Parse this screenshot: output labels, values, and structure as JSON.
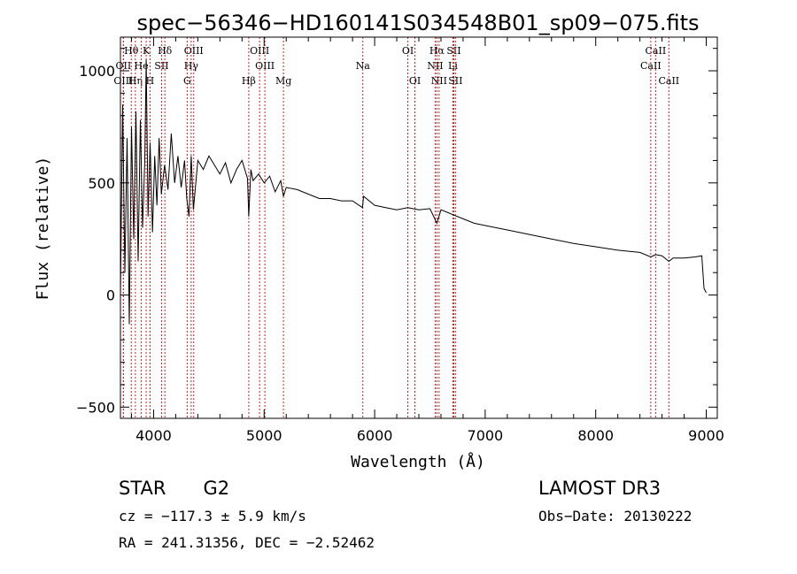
{
  "chart_data": {
    "type": "line",
    "title": "spec−56346−HD160141S034548B01_sp09−075.fits",
    "xlabel": "Wavelength (Å)",
    "ylabel": "Flux (relative)",
    "xlim": [
      3700,
      9100
    ],
    "ylim": [
      -550,
      1150
    ],
    "xticks": [
      4000,
      5000,
      6000,
      7000,
      8000,
      9000
    ],
    "yticks": [
      -500,
      0,
      500,
      1000
    ],
    "series": [
      {
        "name": "spectrum",
        "x": [
          3700,
          3720,
          3740,
          3760,
          3780,
          3800,
          3820,
          3840,
          3860,
          3880,
          3900,
          3920,
          3933,
          3950,
          3968,
          3990,
          4010,
          4030,
          4050,
          4070,
          4100,
          4130,
          4160,
          4190,
          4220,
          4250,
          4280,
          4300,
          4320,
          4340,
          4360,
          4400,
          4450,
          4500,
          4550,
          4600,
          4650,
          4700,
          4750,
          4800,
          4850,
          4861,
          4880,
          4900,
          4950,
          5000,
          5050,
          5100,
          5150,
          5175,
          5200,
          5300,
          5400,
          5500,
          5600,
          5700,
          5800,
          5890,
          5900,
          6000,
          6100,
          6200,
          6300,
          6400,
          6500,
          6563,
          6600,
          6700,
          6800,
          6900,
          7000,
          7200,
          7400,
          7600,
          7800,
          8000,
          8200,
          8400,
          8498,
          8542,
          8600,
          8662,
          8700,
          8800,
          8900,
          8960,
          8980,
          9000
        ],
        "y": [
          0,
          850,
          100,
          700,
          -130,
          750,
          250,
          820,
          150,
          780,
          300,
          600,
          1050,
          350,
          680,
          280,
          620,
          400,
          700,
          450,
          580,
          470,
          720,
          500,
          620,
          480,
          600,
          430,
          350,
          620,
          380,
          600,
          560,
          620,
          580,
          540,
          590,
          500,
          560,
          600,
          520,
          350,
          560,
          510,
          540,
          500,
          530,
          460,
          510,
          440,
          480,
          470,
          450,
          430,
          430,
          420,
          420,
          390,
          440,
          400,
          390,
          380,
          390,
          380,
          385,
          320,
          380,
          360,
          340,
          320,
          310,
          290,
          270,
          250,
          230,
          215,
          200,
          190,
          170,
          180,
          175,
          150,
          165,
          165,
          170,
          175,
          30,
          10
        ]
      }
    ],
    "lines": [
      {
        "name": "Hθ",
        "x": 3798,
        "row": 1
      },
      {
        "name": "OII",
        "x": 3727,
        "row": 2
      },
      {
        "name": "OIII",
        "x": 3727,
        "row": 3
      },
      {
        "name": "Hη",
        "x": 3835,
        "row": 3
      },
      {
        "name": "K",
        "x": 3933,
        "row": 1
      },
      {
        "name": "He",
        "x": 3889,
        "row": 2
      },
      {
        "name": "H",
        "x": 3968,
        "row": 3
      },
      {
        "name": "Hδ",
        "x": 4102,
        "row": 1
      },
      {
        "name": "SII",
        "x": 4072,
        "row": 2
      },
      {
        "name": "OIII",
        "x": 4363,
        "row": 1
      },
      {
        "name": "Hγ",
        "x": 4340,
        "row": 2
      },
      {
        "name": "G",
        "x": 4304,
        "row": 3
      },
      {
        "name": "Hβ",
        "x": 4861,
        "row": 3
      },
      {
        "name": "OIII",
        "x": 4959,
        "row": 1
      },
      {
        "name": "OIII",
        "x": 5007,
        "row": 2
      },
      {
        "name": "Mg",
        "x": 5175,
        "row": 3
      },
      {
        "name": "Na",
        "x": 5893,
        "row": 2
      },
      {
        "name": "OI",
        "x": 6300,
        "row": 1
      },
      {
        "name": "OI",
        "x": 6364,
        "row": 3
      },
      {
        "name": "Hα",
        "x": 6563,
        "row": 1
      },
      {
        "name": "NII",
        "x": 6548,
        "row": 2
      },
      {
        "name": "NII",
        "x": 6583,
        "row": 3
      },
      {
        "name": "SII",
        "x": 6716,
        "row": 1
      },
      {
        "name": "Li",
        "x": 6708,
        "row": 2
      },
      {
        "name": "SII",
        "x": 6731,
        "row": 3
      },
      {
        "name": "CaII",
        "x": 8542,
        "row": 1
      },
      {
        "name": "CaII",
        "x": 8498,
        "row": 2
      },
      {
        "name": "CaII",
        "x": 8662,
        "row": 3
      }
    ]
  },
  "info": {
    "class_label": "STAR",
    "subclass_label": "G2",
    "cz_text": "cz = −117.3 ± 5.9 km/s",
    "coords_text": "RA = 241.31356, DEC =  −2.52462",
    "survey_label": "LAMOST DR3",
    "obs_date_text": "Obs−Date: 20130222"
  }
}
